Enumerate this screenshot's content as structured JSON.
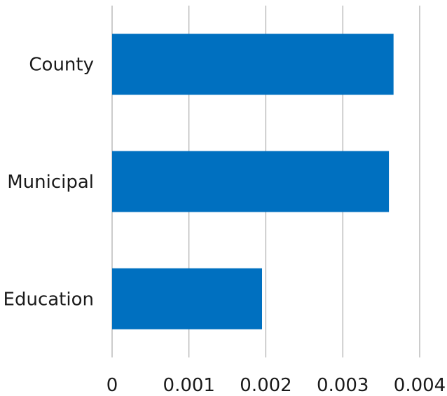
{
  "chart_data": {
    "type": "bar",
    "orientation": "horizontal",
    "categories": [
      "County",
      "Municipal",
      "Education"
    ],
    "values": [
      0.00366,
      0.0036,
      0.00195
    ],
    "xlim": [
      0,
      0.004
    ],
    "x_ticks": [
      "0",
      "0.001",
      "0.002",
      "0.003",
      "0.004"
    ],
    "title": "",
    "xlabel": "",
    "ylabel": "",
    "grid": "vertical",
    "legend": "none",
    "bar_color": "#0070c0"
  }
}
